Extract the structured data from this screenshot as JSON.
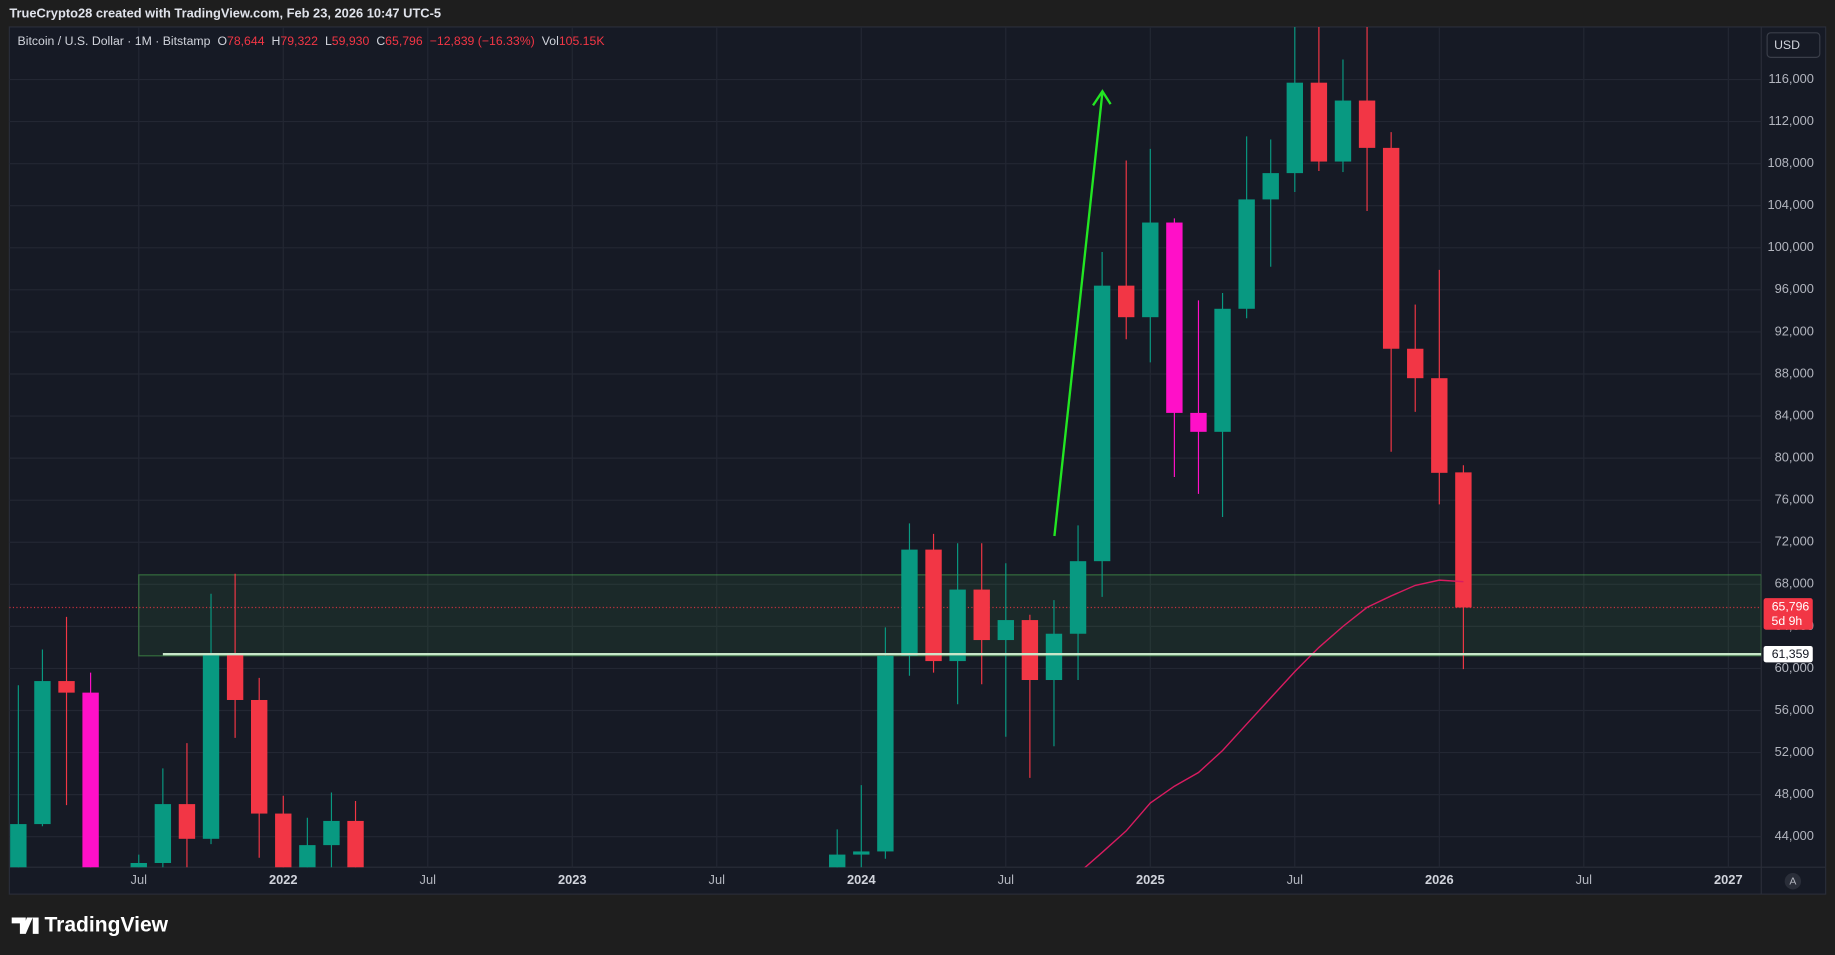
{
  "header": "TrueCrypto28 created with TradingView.com, Feb 23, 2026 10:47 UTC-5",
  "currency_button": "USD",
  "scale_mode": "A",
  "footer_logo": "TradingView",
  "chart_data": {
    "type": "candlestick",
    "title": "Bitcoin / U.S. Dollar · 1M · Bitstamp",
    "legend": [
      {
        "key": "O",
        "text": "78,644"
      },
      {
        "key": "H",
        "text": "79,322"
      },
      {
        "key": "L",
        "text": "59,930"
      },
      {
        "key": "C",
        "text": "65,796"
      },
      {
        "text": "−12,839 (−16.33%)"
      },
      {
        "key": "Vol",
        "text": "105.15K"
      }
    ],
    "x": [
      "2021-02",
      "2021-03",
      "2021-04",
      "2021-05",
      "2021-07",
      "2021-08",
      "2021-09",
      "2021-10",
      "2021-11",
      "2021-12",
      "2022-01",
      "2022-02",
      "2022-03",
      "2022-04",
      "2023-12",
      "2024-01",
      "2024-02",
      "2024-03",
      "2024-04",
      "2024-05",
      "2024-06",
      "2024-07",
      "2024-08",
      "2024-09",
      "2024-10",
      "2024-11",
      "2024-12",
      "2025-01",
      "2025-02",
      "2025-03",
      "2025-04",
      "2025-05",
      "2025-06",
      "2025-07",
      "2025-08",
      "2025-09",
      "2025-10",
      "2025-11",
      "2025-12",
      "2026-01",
      "2026-02"
    ],
    "open": [
      33100,
      45200,
      58800,
      57700,
      35000,
      41500,
      47100,
      43800,
      61300,
      57000,
      46200,
      38500,
      43200,
      45500,
      37700,
      42300,
      42600,
      61200,
      71300,
      60700,
      67500,
      62700,
      64600,
      58900,
      63300,
      70200,
      96400,
      93400,
      102400,
      84300,
      82500,
      94200,
      104600,
      107100,
      115700,
      108200,
      114000,
      109500,
      90400,
      87600,
      78644
    ],
    "high": [
      58400,
      61800,
      64900,
      59600,
      42300,
      50500,
      52900,
      67100,
      69000,
      59100,
      47900,
      45800,
      48200,
      47400,
      44700,
      48900,
      63900,
      73800,
      72800,
      71900,
      71900,
      70000,
      65100,
      66500,
      73600,
      99600,
      108300,
      109400,
      102800,
      95000,
      95700,
      110600,
      110300,
      123200,
      124500,
      117900,
      126200,
      111000,
      94600,
      97900,
      79322
    ],
    "low": [
      32300,
      45000,
      47000,
      30000,
      29300,
      37500,
      39600,
      43300,
      53400,
      42000,
      33100,
      34300,
      37200,
      33900,
      37600,
      38500,
      41900,
      59300,
      59600,
      56600,
      58500,
      53500,
      49600,
      52600,
      58900,
      66800,
      91300,
      89100,
      78200,
      76600,
      74400,
      93300,
      98200,
      105300,
      107300,
      107200,
      103500,
      80600,
      84400,
      75600,
      59930
    ],
    "close": [
      45200,
      58800,
      57700,
      37300,
      41500,
      47100,
      43800,
      61300,
      57000,
      46200,
      38500,
      43200,
      45500,
      37700,
      42300,
      42600,
      61200,
      71300,
      60700,
      67500,
      62700,
      64600,
      58900,
      63300,
      70200,
      96400,
      93400,
      102400,
      84300,
      82500,
      94200,
      104600,
      107100,
      115700,
      108200,
      114000,
      109500,
      90400,
      87600,
      78600,
      65796
    ],
    "colors": [
      "#089981",
      "#089981",
      "#f23645",
      "#ff10c8",
      "#089981",
      "#089981",
      "#f23645",
      "#089981",
      "#f23645",
      "#f23645",
      "#f23645",
      "#089981",
      "#089981",
      "#f23645",
      "#089981",
      "#089981",
      "#089981",
      "#089981",
      "#f23645",
      "#089981",
      "#f23645",
      "#089981",
      "#f23645",
      "#089981",
      "#089981",
      "#089981",
      "#f23645",
      "#089981",
      "#ff10c8",
      "#ff10c8",
      "#089981",
      "#089981",
      "#089981",
      "#089981",
      "#f23645",
      "#089981",
      "#f23645",
      "#f23645",
      "#f23645",
      "#f23645",
      "#f23645"
    ],
    "moving_average": {
      "color": "#d81b60",
      "x": [
        "2024-10",
        "2024-11",
        "2024-12",
        "2025-01",
        "2025-02",
        "2025-03",
        "2025-04",
        "2025-05",
        "2025-06",
        "2025-07",
        "2025-08",
        "2025-09",
        "2025-10",
        "2025-11",
        "2025-12",
        "2026-01",
        "2026-02"
      ],
      "values": [
        40500,
        42500,
        44550,
        47200,
        48800,
        50100,
        52200,
        54700,
        57200,
        59700,
        62000,
        64000,
        65800,
        66900,
        67900,
        68400,
        68250
      ]
    },
    "zone": {
      "ylim": [
        61200,
        68900
      ],
      "x_start": "2021-07",
      "color": "#4caf50"
    },
    "price_line": {
      "value": 61359,
      "label": "61,359",
      "x_start": "2021-08",
      "color": "#c8e6c9"
    },
    "last_price": {
      "value": 65796,
      "label": "65,796",
      "countdown": "5d 9h",
      "color": "#f23645"
    },
    "xlim": [
      "2021-01",
      "2027-03"
    ],
    "ylim": [
      41100,
      121000
    ],
    "xticks": [
      {
        "value": "2021-07",
        "label": "Jul"
      },
      {
        "value": "2022-01",
        "label": "2022"
      },
      {
        "value": "2022-07",
        "label": "Jul"
      },
      {
        "value": "2023-01",
        "label": "2023"
      },
      {
        "value": "2023-07",
        "label": "Jul"
      },
      {
        "value": "2024-01",
        "label": "2024"
      },
      {
        "value": "2024-07",
        "label": "Jul"
      },
      {
        "value": "2025-01",
        "label": "2025"
      },
      {
        "value": "2025-07",
        "label": "Jul"
      },
      {
        "value": "2026-01",
        "label": "2026"
      },
      {
        "value": "2026-07",
        "label": "Jul"
      },
      {
        "value": "2027-01",
        "label": "2027"
      }
    ],
    "yticks": [
      {
        "value": 44000,
        "label": "44,000"
      },
      {
        "value": 48000,
        "label": "48,000"
      },
      {
        "value": 52000,
        "label": "52,000"
      },
      {
        "value": 56000,
        "label": "56,000"
      },
      {
        "value": 60000,
        "label": "60,000"
      },
      {
        "value": 64000,
        "label": "64,000"
      },
      {
        "value": 68000,
        "label": "68,000"
      },
      {
        "value": 72000,
        "label": "72,000"
      },
      {
        "value": 76000,
        "label": "76,000"
      },
      {
        "value": 80000,
        "label": "80,000"
      },
      {
        "value": 84000,
        "label": "84,000"
      },
      {
        "value": 88000,
        "label": "88,000"
      },
      {
        "value": 92000,
        "label": "92,000"
      },
      {
        "value": 96000,
        "label": "96,000"
      },
      {
        "value": 100000,
        "label": "100,000"
      },
      {
        "value": 104000,
        "label": "104,000"
      },
      {
        "value": 108000,
        "label": "108,000"
      },
      {
        "value": 112000,
        "label": "112,000"
      },
      {
        "value": 116000,
        "label": "116,000"
      }
    ],
    "grid": true
  }
}
